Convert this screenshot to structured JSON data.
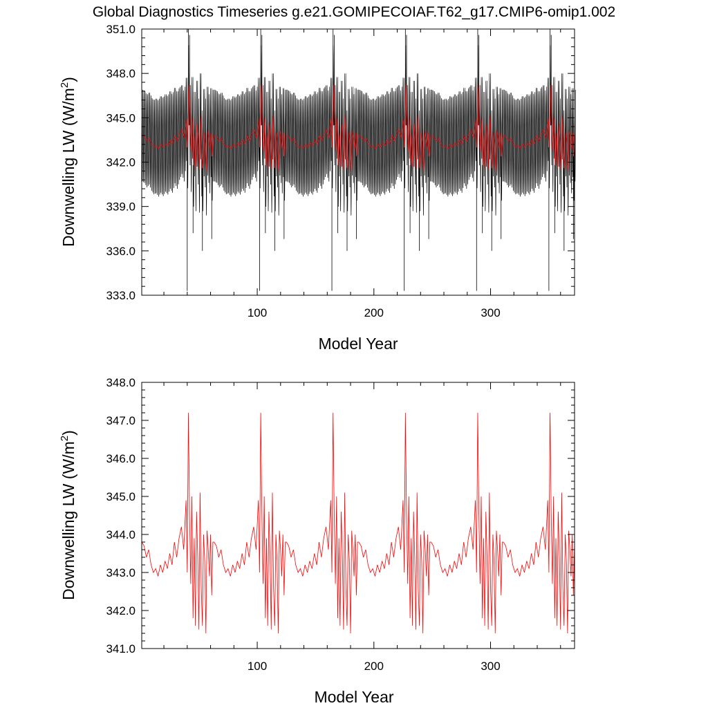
{
  "chart_data": [
    {
      "type": "line",
      "title": "Global Diagnostics Timeseries g.e21.GOMIPECOIAF.T62_g17.CMIP6-omip1.002",
      "xlabel": "Model Year",
      "ylabel": "Downwelling LW (W/m",
      "ylabel_sup": "2",
      "ylabel_close": ")",
      "xlim": [
        1,
        372
      ],
      "ylim": [
        333.0,
        351.0
      ],
      "xticks": [
        100,
        200,
        300
      ],
      "xtick_labels": [
        "100",
        "200",
        "300"
      ],
      "yticks": [
        333.0,
        336.0,
        339.0,
        342.0,
        345.0,
        348.0,
        351.0
      ],
      "ytick_labels": [
        "333.0",
        "336.0",
        "339.0",
        "342.0",
        "345.0",
        "348.0",
        "351.0"
      ],
      "grid": false,
      "cycle_length_years": 62,
      "cycle_starts": [
        1,
        63,
        125,
        187,
        249,
        311
      ],
      "series": [
        {
          "kind": "monthly",
          "color": "#000000",
          "cycle_template": {
            "years": [
              0,
              6,
              12,
              18,
              24,
              30,
              34,
              38,
              40,
              42,
              44,
              46,
              48,
              50,
              52,
              54,
              56,
              58,
              60,
              61
            ],
            "annual_mean": [
              343.7,
              343.2,
              343.0,
              343.1,
              343.3,
              343.6,
              344.2,
              345.2,
              346.6,
              345.0,
              342.8,
              345.0,
              341.8,
              343.8,
              341.6,
              344.0,
              342.8,
              344.0,
              341.6,
              343.8
            ],
            "seasonal_amplitude": [
              3.2,
              3.2,
              3.3,
              3.4,
              3.4,
              3.3,
              3.1,
              2.9,
              2.8,
              2.8,
              2.9,
              3.0,
              3.0,
              3.0,
              3.0,
              3.1,
              3.1,
              3.1,
              3.1,
              3.2
            ],
            "spikes": [
              {
                "year": 40,
                "value": 351.0
              },
              {
                "year": 41,
                "value": 350.6
              },
              {
                "year": 39,
                "value": 333.3
              },
              {
                "year": 44,
                "value": 337.2
              },
              {
                "year": 52,
                "value": 336.0
              },
              {
                "year": 60,
                "value": 336.8
              }
            ]
          }
        },
        {
          "kind": "annual_mean",
          "color": "#ff0000",
          "note_values": "same annual-mean series as in the second panel"
        }
      ]
    },
    {
      "type": "line",
      "title": "",
      "xlabel": "Model Year",
      "ylabel": "Downwelling LW (W/m",
      "ylabel_sup": "2",
      "ylabel_close": ")",
      "xlim": [
        1,
        372
      ],
      "ylim": [
        341.0,
        348.0
      ],
      "xticks": [
        100,
        200,
        300
      ],
      "xtick_labels": [
        "100",
        "200",
        "300"
      ],
      "yticks": [
        341.0,
        342.0,
        343.0,
        344.0,
        345.0,
        346.0,
        347.0,
        348.0
      ],
      "ytick_labels": [
        "341.0",
        "342.0",
        "343.0",
        "344.0",
        "345.0",
        "346.0",
        "347.0",
        "348.0"
      ],
      "grid": false,
      "series": [
        {
          "kind": "annual_mean",
          "color": "#ff0000",
          "cycle_template": {
            "years": [
              0,
              2,
              4,
              6,
              8,
              10,
              12,
              14,
              16,
              18,
              20,
              22,
              24,
              26,
              28,
              30,
              32,
              34,
              36,
              38,
              39,
              40,
              41,
              42,
              43,
              44,
              45,
              46,
              47,
              48,
              49,
              50,
              51,
              52,
              53,
              54,
              55,
              56,
              57,
              58,
              59,
              60,
              61
            ],
            "values": [
              343.8,
              343.7,
              343.4,
              343.6,
              343.2,
              343.0,
              343.1,
              342.9,
              343.2,
              343.0,
              343.3,
              343.1,
              343.5,
              343.2,
              343.8,
              343.4,
              343.9,
              344.2,
              343.6,
              344.9,
              343.0,
              347.2,
              344.5,
              342.7,
              345.0,
              341.8,
              343.9,
              341.6,
              344.6,
              343.4,
              341.5,
              345.1,
              342.6,
              341.6,
              344.0,
              343.3,
              341.4,
              344.1,
              343.6,
              342.9,
              344.0,
              342.4,
              343.8
            ]
          }
        }
      ]
    }
  ]
}
